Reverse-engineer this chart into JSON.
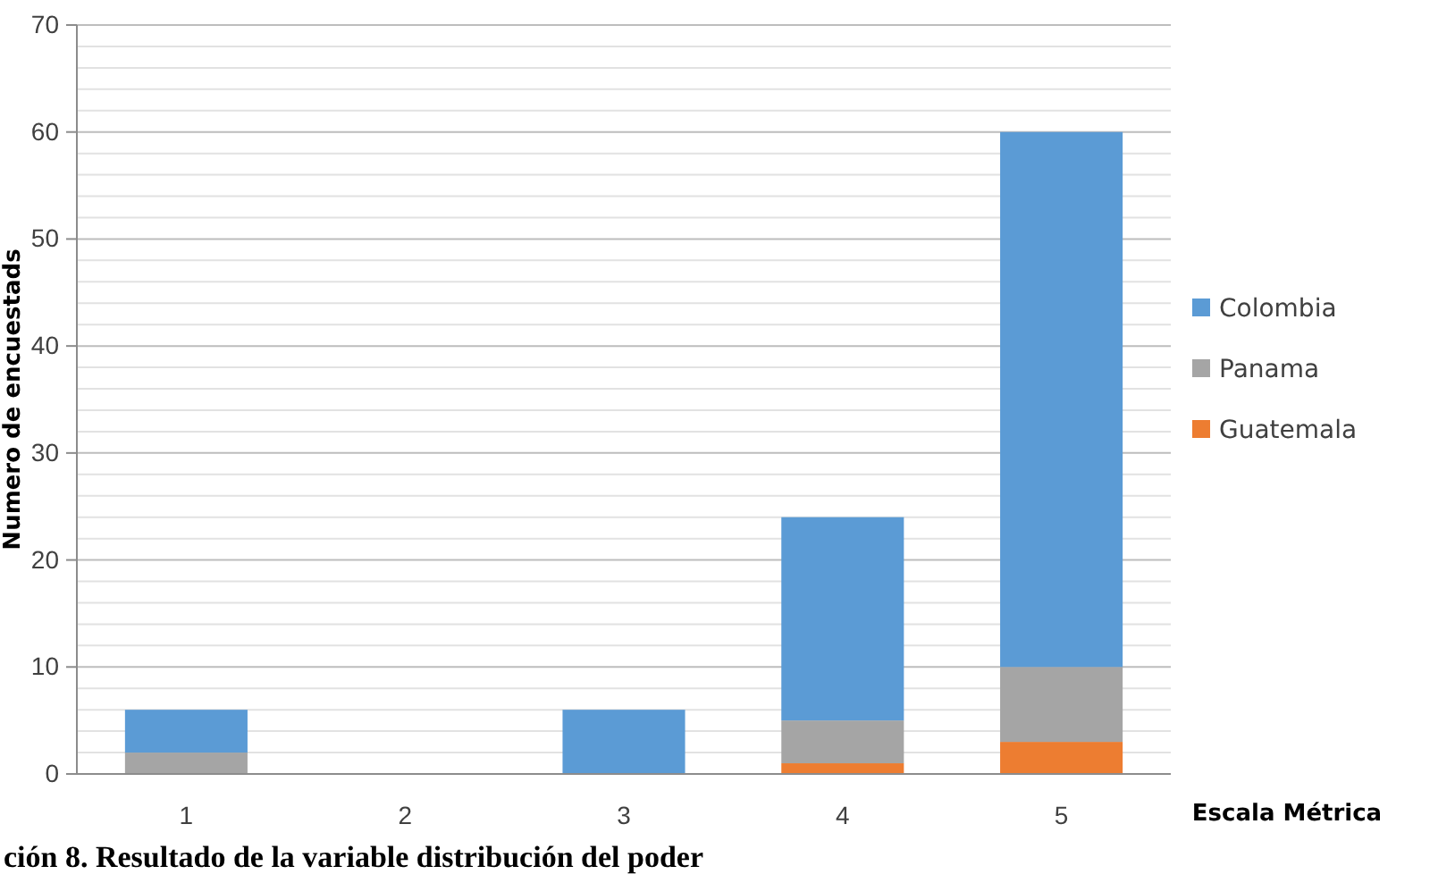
{
  "chart_data": {
    "type": "bar",
    "stacked": true,
    "title": "ción 8. Resultado de la variable distribución del poder",
    "xlabel": "Escala Métrica",
    "ylabel": "Numero de encuestads",
    "categories": [
      "1",
      "2",
      "3",
      "4",
      "5"
    ],
    "series": [
      {
        "name": "Guatemala",
        "color": "#ed7d31",
        "values": [
          null,
          null,
          null,
          1,
          3
        ]
      },
      {
        "name": "Panama",
        "color": "#a5a5a5",
        "values": [
          2,
          null,
          null,
          4,
          7
        ]
      },
      {
        "name": "Colombia",
        "color": "#5b9bd5",
        "values": [
          4,
          null,
          6,
          19,
          50
        ]
      }
    ],
    "ylim": [
      0,
      70
    ],
    "yticks": [
      0,
      {
        "value": 2,
        "label": null
      },
      {
        "value": 4,
        "label": null
      },
      {
        "value": 6,
        "label": null
      },
      {
        "value": 8,
        "label": null
      },
      10,
      {
        "value": 12,
        "label": null
      },
      {
        "value": 14,
        "label": null
      },
      {
        "value": 16,
        "label": null
      },
      {
        "value": 18,
        "label": null
      },
      20,
      {
        "value": 22,
        "label": null
      },
      {
        "value": 24,
        "label": null
      },
      {
        "value": 26,
        "label": null
      },
      {
        "value": 28,
        "label": null
      },
      30,
      {
        "value": 32,
        "label": null
      },
      {
        "value": 34,
        "label": null
      },
      {
        "value": 36,
        "label": null
      },
      {
        "value": 38,
        "label": null
      },
      40,
      {
        "value": 42,
        "label": null
      },
      {
        "value": 44,
        "label": null
      },
      {
        "value": 46,
        "label": null
      },
      {
        "value": 48,
        "label": null
      },
      50,
      {
        "value": 52,
        "label": null
      },
      {
        "value": 54,
        "label": null
      },
      {
        "value": 56,
        "label": null
      },
      {
        "value": 58,
        "label": null
      },
      60,
      {
        "value": 62,
        "label": null
      },
      {
        "value": 64,
        "label": null
      },
      {
        "value": 66,
        "label": null
      },
      {
        "value": 68,
        "label": null
      },
      70
    ],
    "grid": "y",
    "legend": "right"
  }
}
